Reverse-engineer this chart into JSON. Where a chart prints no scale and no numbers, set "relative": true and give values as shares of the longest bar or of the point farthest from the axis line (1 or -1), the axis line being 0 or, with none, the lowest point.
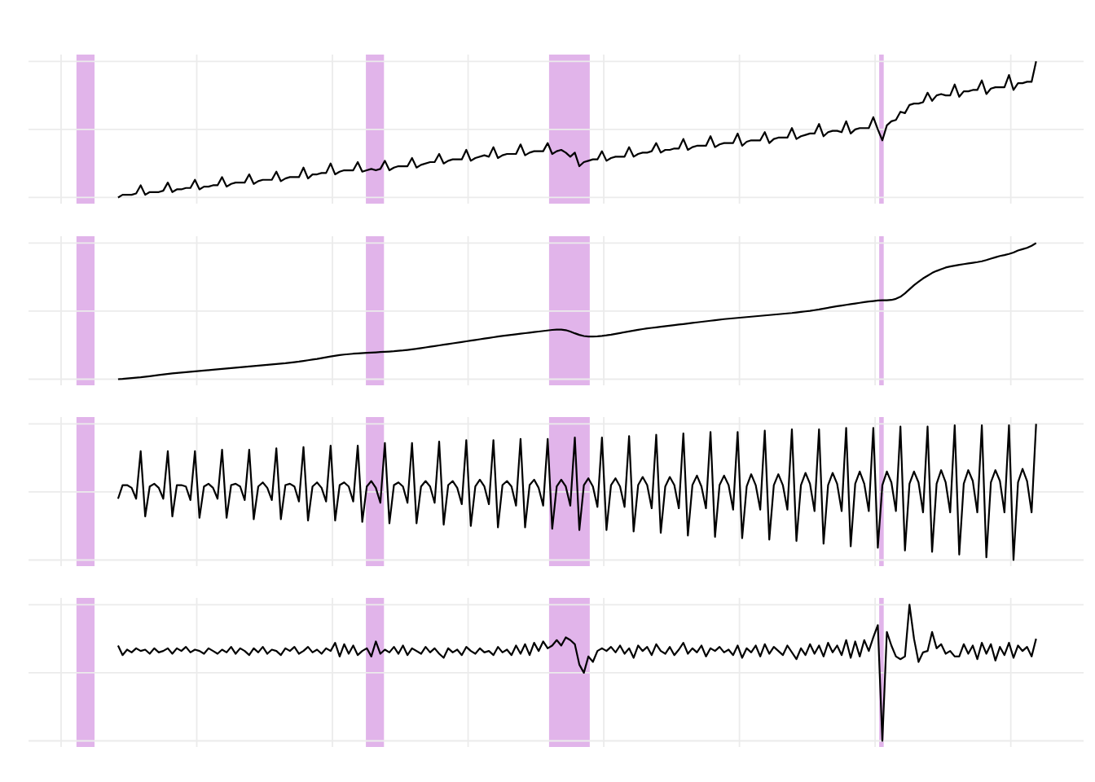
{
  "chart_data": [
    {
      "type": "line",
      "relative": true,
      "grid": true,
      "color": "#000000",
      "categories": [
        null,
        null,
        null,
        null,
        null,
        null,
        null,
        null,
        null,
        null,
        null,
        null,
        null,
        null,
        null,
        null,
        null,
        null,
        null,
        null,
        null,
        null,
        null,
        null,
        null,
        null,
        null,
        null,
        null,
        null,
        null,
        null,
        null,
        null,
        null,
        null,
        null,
        null,
        null,
        null,
        null,
        null,
        null,
        null,
        null,
        null,
        null,
        null,
        null,
        null,
        null,
        null,
        null,
        null,
        null,
        null,
        null,
        null,
        null,
        null,
        null,
        null,
        null,
        null,
        null,
        null,
        null,
        null,
        null,
        null,
        null,
        null,
        null,
        null,
        null,
        null,
        null,
        null,
        null,
        null,
        null,
        null,
        null,
        null,
        null,
        null,
        null,
        null,
        null,
        null,
        null,
        null,
        null,
        null,
        null,
        null,
        null,
        null,
        null,
        null,
        null,
        null,
        null,
        null,
        null,
        null,
        null,
        null,
        null,
        null,
        null,
        null,
        null,
        null,
        null,
        null,
        null,
        null,
        null,
        null,
        null,
        null,
        null,
        null,
        null,
        null,
        null,
        null,
        null,
        null,
        null,
        null,
        null,
        null,
        null,
        null,
        null,
        null,
        null,
        null,
        null,
        null,
        null,
        null,
        null,
        null,
        null,
        null,
        null,
        null,
        null,
        null,
        null,
        null,
        null,
        null,
        null,
        null,
        null,
        null,
        null,
        null,
        null,
        null,
        null,
        null,
        null,
        null,
        null,
        null,
        null,
        null,
        null,
        null,
        null,
        null,
        null,
        null,
        null,
        null,
        null,
        null,
        null,
        null,
        null,
        null,
        null,
        null,
        null,
        null,
        null,
        null,
        null,
        null,
        null,
        null,
        null,
        null,
        null,
        null,
        null,
        null,
        null,
        null
      ],
      "values": [
        0.0,
        0.02,
        0.02,
        0.02,
        0.03,
        0.09,
        0.02,
        0.04,
        0.04,
        0.04,
        0.05,
        0.11,
        0.04,
        0.06,
        0.06,
        0.07,
        0.07,
        0.13,
        0.06,
        0.08,
        0.08,
        0.09,
        0.09,
        0.15,
        0.08,
        0.1,
        0.11,
        0.11,
        0.11,
        0.17,
        0.1,
        0.12,
        0.13,
        0.13,
        0.13,
        0.19,
        0.12,
        0.14,
        0.15,
        0.15,
        0.15,
        0.22,
        0.14,
        0.17,
        0.17,
        0.18,
        0.18,
        0.25,
        0.17,
        0.19,
        0.2,
        0.2,
        0.2,
        0.26,
        0.19,
        0.2,
        0.21,
        0.2,
        0.21,
        0.27,
        0.2,
        0.22,
        0.23,
        0.23,
        0.23,
        0.29,
        0.22,
        0.24,
        0.25,
        0.26,
        0.26,
        0.32,
        0.25,
        0.27,
        0.28,
        0.28,
        0.28,
        0.35,
        0.27,
        0.29,
        0.3,
        0.31,
        0.3,
        0.37,
        0.29,
        0.31,
        0.32,
        0.32,
        0.32,
        0.39,
        0.31,
        0.33,
        0.34,
        0.34,
        0.34,
        0.4,
        0.32,
        0.34,
        0.35,
        0.33,
        0.3,
        0.33,
        0.23,
        0.26,
        0.27,
        0.28,
        0.28,
        0.34,
        0.27,
        0.29,
        0.3,
        0.3,
        0.3,
        0.37,
        0.3,
        0.32,
        0.33,
        0.33,
        0.34,
        0.4,
        0.33,
        0.35,
        0.35,
        0.36,
        0.36,
        0.43,
        0.35,
        0.37,
        0.38,
        0.38,
        0.38,
        0.45,
        0.37,
        0.39,
        0.4,
        0.4,
        0.4,
        0.47,
        0.38,
        0.41,
        0.42,
        0.42,
        0.42,
        0.48,
        0.4,
        0.43,
        0.44,
        0.44,
        0.44,
        0.51,
        0.43,
        0.45,
        0.46,
        0.47,
        0.47,
        0.54,
        0.45,
        0.48,
        0.49,
        0.49,
        0.48,
        0.56,
        0.47,
        0.5,
        0.51,
        0.51,
        0.51,
        0.59,
        0.5,
        0.42,
        0.53,
        0.56,
        0.57,
        0.63,
        0.62,
        0.68,
        0.69,
        0.69,
        0.7,
        0.77,
        0.71,
        0.75,
        0.76,
        0.75,
        0.75,
        0.83,
        0.74,
        0.78,
        0.78,
        0.79,
        0.79,
        0.86,
        0.76,
        0.8,
        0.81,
        0.81,
        0.81,
        0.9,
        0.79,
        0.84,
        0.84,
        0.85,
        0.85,
        1.0
      ]
    },
    {
      "type": "line",
      "relative": true,
      "grid": true,
      "color": "#000000",
      "categories": [
        null,
        null,
        null,
        null,
        null,
        null,
        null,
        null,
        null,
        null,
        null,
        null,
        null,
        null,
        null,
        null,
        null,
        null,
        null,
        null,
        null,
        null,
        null,
        null,
        null,
        null,
        null,
        null,
        null,
        null,
        null,
        null,
        null,
        null,
        null,
        null,
        null,
        null,
        null,
        null,
        null,
        null,
        null,
        null,
        null,
        null,
        null,
        null,
        null,
        null,
        null,
        null,
        null,
        null,
        null,
        null,
        null,
        null,
        null,
        null,
        null,
        null,
        null,
        null,
        null,
        null,
        null,
        null,
        null,
        null,
        null,
        null,
        null,
        null,
        null,
        null,
        null,
        null,
        null,
        null,
        null,
        null,
        null,
        null,
        null,
        null,
        null,
        null,
        null,
        null,
        null,
        null,
        null,
        null,
        null,
        null,
        null,
        null,
        null,
        null,
        null,
        null,
        null,
        null,
        null,
        null,
        null,
        null,
        null,
        null,
        null,
        null,
        null,
        null,
        null,
        null,
        null,
        null,
        null,
        null,
        null,
        null,
        null,
        null,
        null,
        null,
        null,
        null,
        null,
        null,
        null,
        null,
        null,
        null,
        null,
        null,
        null,
        null,
        null,
        null,
        null,
        null,
        null,
        null,
        null,
        null,
        null,
        null,
        null,
        null,
        null,
        null,
        null,
        null,
        null,
        null,
        null,
        null,
        null,
        null,
        null,
        null,
        null,
        null,
        null,
        null,
        null,
        null,
        null,
        null,
        null,
        null,
        null,
        null,
        null,
        null,
        null,
        null,
        null,
        null,
        null,
        null,
        null,
        null,
        null,
        null,
        null,
        null,
        null,
        null,
        null,
        null,
        null,
        null,
        null,
        null,
        null,
        null,
        null,
        null,
        null,
        null,
        null,
        null
      ],
      "values": [
        0.0,
        0.002,
        0.005,
        0.008,
        0.011,
        0.014,
        0.018,
        0.022,
        0.026,
        0.03,
        0.034,
        0.038,
        0.042,
        0.045,
        0.048,
        0.051,
        0.054,
        0.057,
        0.06,
        0.063,
        0.066,
        0.069,
        0.072,
        0.075,
        0.078,
        0.081,
        0.084,
        0.087,
        0.09,
        0.093,
        0.096,
        0.099,
        0.102,
        0.105,
        0.108,
        0.111,
        0.114,
        0.117,
        0.121,
        0.125,
        0.129,
        0.134,
        0.139,
        0.144,
        0.149,
        0.155,
        0.161,
        0.167,
        0.172,
        0.177,
        0.181,
        0.184,
        0.187,
        0.189,
        0.191,
        0.193,
        0.195,
        0.197,
        0.199,
        0.201,
        0.203,
        0.205,
        0.208,
        0.211,
        0.215,
        0.219,
        0.223,
        0.228,
        0.233,
        0.238,
        0.243,
        0.248,
        0.253,
        0.258,
        0.263,
        0.268,
        0.273,
        0.278,
        0.283,
        0.288,
        0.293,
        0.298,
        0.303,
        0.308,
        0.313,
        0.318,
        0.322,
        0.326,
        0.33,
        0.334,
        0.338,
        0.342,
        0.346,
        0.35,
        0.354,
        0.358,
        0.362,
        0.364,
        0.364,
        0.36,
        0.35,
        0.337,
        0.325,
        0.317,
        0.313,
        0.313,
        0.315,
        0.318,
        0.322,
        0.327,
        0.333,
        0.339,
        0.345,
        0.351,
        0.357,
        0.363,
        0.368,
        0.373,
        0.377,
        0.381,
        0.385,
        0.389,
        0.393,
        0.397,
        0.401,
        0.405,
        0.409,
        0.413,
        0.417,
        0.421,
        0.425,
        0.429,
        0.433,
        0.437,
        0.441,
        0.444,
        0.447,
        0.45,
        0.453,
        0.456,
        0.459,
        0.462,
        0.465,
        0.468,
        0.471,
        0.474,
        0.477,
        0.48,
        0.483,
        0.486,
        0.49,
        0.494,
        0.498,
        0.502,
        0.507,
        0.512,
        0.518,
        0.524,
        0.53,
        0.536,
        0.541,
        0.546,
        0.551,
        0.556,
        0.561,
        0.566,
        0.57,
        0.574,
        0.578,
        0.58,
        0.58,
        0.582,
        0.59,
        0.605,
        0.63,
        0.66,
        0.69,
        0.715,
        0.74,
        0.76,
        0.78,
        0.795,
        0.808,
        0.82,
        0.828,
        0.834,
        0.84,
        0.845,
        0.85,
        0.855,
        0.86,
        0.866,
        0.875,
        0.885,
        0.895,
        0.905,
        0.912,
        0.92,
        0.93,
        0.945,
        0.955,
        0.965,
        0.98,
        1.0
      ]
    },
    {
      "type": "line",
      "relative": true,
      "grid": true,
      "color": "#000000",
      "categories": [
        null,
        null,
        null,
        null,
        null,
        null,
        null,
        null,
        null,
        null,
        null,
        null,
        null,
        null,
        null,
        null,
        null,
        null,
        null,
        null,
        null,
        null,
        null,
        null,
        null,
        null,
        null,
        null,
        null,
        null,
        null,
        null,
        null,
        null,
        null,
        null,
        null,
        null,
        null,
        null,
        null,
        null,
        null,
        null,
        null,
        null,
        null,
        null,
        null,
        null,
        null,
        null,
        null,
        null,
        null,
        null,
        null,
        null,
        null,
        null,
        null,
        null,
        null,
        null,
        null,
        null,
        null,
        null,
        null,
        null,
        null,
        null,
        null,
        null,
        null,
        null,
        null,
        null,
        null,
        null,
        null,
        null,
        null,
        null,
        null,
        null,
        null,
        null,
        null,
        null,
        null,
        null,
        null,
        null,
        null,
        null,
        null,
        null,
        null,
        null,
        null,
        null,
        null,
        null,
        null,
        null,
        null,
        null,
        null,
        null,
        null,
        null,
        null,
        null,
        null,
        null,
        null,
        null,
        null,
        null,
        null,
        null,
        null,
        null,
        null,
        null,
        null,
        null,
        null,
        null,
        null,
        null,
        null,
        null,
        null,
        null,
        null,
        null,
        null,
        null,
        null,
        null,
        null,
        null,
        null,
        null,
        null,
        null,
        null,
        null,
        null,
        null,
        null,
        null,
        null,
        null,
        null,
        null,
        null,
        null,
        null,
        null,
        null,
        null,
        null,
        null,
        null,
        null,
        null,
        null,
        null,
        null,
        null,
        null,
        null,
        null,
        null,
        null,
        null,
        null,
        null,
        null,
        null,
        null,
        null,
        null,
        null,
        null,
        null,
        null,
        null,
        null,
        null,
        null,
        null,
        null,
        null,
        null,
        null,
        null,
        null,
        null,
        null,
        null
      ],
      "values": [
        0.45,
        0.55,
        0.55,
        0.53,
        0.45,
        0.8,
        0.32,
        0.54,
        0.56,
        0.53,
        0.45,
        0.8,
        0.32,
        0.55,
        0.55,
        0.54,
        0.44,
        0.8,
        0.31,
        0.54,
        0.56,
        0.53,
        0.45,
        0.81,
        0.31,
        0.55,
        0.56,
        0.54,
        0.44,
        0.81,
        0.3,
        0.54,
        0.57,
        0.53,
        0.44,
        0.82,
        0.3,
        0.55,
        0.56,
        0.54,
        0.43,
        0.83,
        0.29,
        0.54,
        0.57,
        0.53,
        0.43,
        0.84,
        0.29,
        0.55,
        0.57,
        0.54,
        0.43,
        0.84,
        0.28,
        0.54,
        0.58,
        0.53,
        0.42,
        0.86,
        0.27,
        0.55,
        0.57,
        0.54,
        0.42,
        0.86,
        0.27,
        0.54,
        0.58,
        0.54,
        0.42,
        0.87,
        0.26,
        0.55,
        0.58,
        0.53,
        0.41,
        0.88,
        0.25,
        0.54,
        0.59,
        0.54,
        0.41,
        0.88,
        0.24,
        0.55,
        0.58,
        0.54,
        0.4,
        0.89,
        0.24,
        0.55,
        0.59,
        0.53,
        0.4,
        0.89,
        0.23,
        0.54,
        0.59,
        0.54,
        0.4,
        0.9,
        0.22,
        0.55,
        0.6,
        0.54,
        0.39,
        0.9,
        0.22,
        0.55,
        0.6,
        0.54,
        0.39,
        0.91,
        0.21,
        0.55,
        0.61,
        0.55,
        0.38,
        0.92,
        0.2,
        0.54,
        0.61,
        0.55,
        0.38,
        0.93,
        0.18,
        0.55,
        0.62,
        0.54,
        0.38,
        0.94,
        0.17,
        0.55,
        0.62,
        0.55,
        0.37,
        0.94,
        0.16,
        0.54,
        0.63,
        0.55,
        0.37,
        0.95,
        0.15,
        0.55,
        0.63,
        0.55,
        0.37,
        0.96,
        0.14,
        0.55,
        0.64,
        0.56,
        0.36,
        0.96,
        0.12,
        0.55,
        0.64,
        0.56,
        0.36,
        0.97,
        0.1,
        0.56,
        0.65,
        0.56,
        0.36,
        0.97,
        0.09,
        0.55,
        0.65,
        0.57,
        0.36,
        0.98,
        0.07,
        0.56,
        0.65,
        0.57,
        0.35,
        0.98,
        0.06,
        0.56,
        0.66,
        0.57,
        0.35,
        0.99,
        0.04,
        0.56,
        0.66,
        0.58,
        0.35,
        0.99,
        0.02,
        0.57,
        0.66,
        0.58,
        0.35,
        0.99,
        0.0,
        0.57,
        0.67,
        0.58,
        0.35,
        1.0
      ]
    },
    {
      "type": "line",
      "relative": true,
      "grid": true,
      "color": "#000000",
      "categories": [
        null,
        null,
        null,
        null,
        null,
        null,
        null,
        null,
        null,
        null,
        null,
        null,
        null,
        null,
        null,
        null,
        null,
        null,
        null,
        null,
        null,
        null,
        null,
        null,
        null,
        null,
        null,
        null,
        null,
        null,
        null,
        null,
        null,
        null,
        null,
        null,
        null,
        null,
        null,
        null,
        null,
        null,
        null,
        null,
        null,
        null,
        null,
        null,
        null,
        null,
        null,
        null,
        null,
        null,
        null,
        null,
        null,
        null,
        null,
        null,
        null,
        null,
        null,
        null,
        null,
        null,
        null,
        null,
        null,
        null,
        null,
        null,
        null,
        null,
        null,
        null,
        null,
        null,
        null,
        null,
        null,
        null,
        null,
        null,
        null,
        null,
        null,
        null,
        null,
        null,
        null,
        null,
        null,
        null,
        null,
        null,
        null,
        null,
        null,
        null,
        null,
        null,
        null,
        null,
        null,
        null,
        null,
        null,
        null,
        null,
        null,
        null,
        null,
        null,
        null,
        null,
        null,
        null,
        null,
        null,
        null,
        null,
        null,
        null,
        null,
        null,
        null,
        null,
        null,
        null,
        null,
        null,
        null,
        null,
        null,
        null,
        null,
        null,
        null,
        null,
        null,
        null,
        null,
        null,
        null,
        null,
        null,
        null,
        null,
        null,
        null,
        null,
        null,
        null,
        null,
        null,
        null,
        null,
        null,
        null,
        null,
        null,
        null,
        null,
        null,
        null,
        null,
        null,
        null,
        null,
        null,
        null,
        null,
        null,
        null,
        null,
        null,
        null,
        null,
        null,
        null,
        null,
        null,
        null,
        null,
        null,
        null,
        null,
        null,
        null,
        null,
        null,
        null,
        null,
        null,
        null,
        null,
        null,
        null,
        null,
        null,
        null,
        null,
        null
      ],
      "values": [
        0.7,
        0.63,
        0.67,
        0.65,
        0.68,
        0.66,
        0.67,
        0.64,
        0.68,
        0.65,
        0.66,
        0.68,
        0.64,
        0.68,
        0.66,
        0.69,
        0.65,
        0.67,
        0.66,
        0.64,
        0.68,
        0.66,
        0.64,
        0.67,
        0.65,
        0.69,
        0.64,
        0.68,
        0.66,
        0.63,
        0.68,
        0.65,
        0.69,
        0.64,
        0.67,
        0.66,
        0.63,
        0.68,
        0.66,
        0.69,
        0.64,
        0.66,
        0.69,
        0.65,
        0.67,
        0.64,
        0.68,
        0.66,
        0.72,
        0.62,
        0.71,
        0.64,
        0.7,
        0.63,
        0.66,
        0.68,
        0.62,
        0.73,
        0.64,
        0.67,
        0.65,
        0.69,
        0.64,
        0.7,
        0.63,
        0.68,
        0.66,
        0.64,
        0.69,
        0.65,
        0.68,
        0.64,
        0.61,
        0.68,
        0.65,
        0.67,
        0.63,
        0.69,
        0.66,
        0.64,
        0.68,
        0.65,
        0.66,
        0.63,
        0.69,
        0.65,
        0.67,
        0.63,
        0.7,
        0.64,
        0.71,
        0.63,
        0.72,
        0.66,
        0.73,
        0.68,
        0.7,
        0.74,
        0.7,
        0.76,
        0.74,
        0.71,
        0.56,
        0.5,
        0.62,
        0.58,
        0.66,
        0.68,
        0.66,
        0.69,
        0.65,
        0.7,
        0.64,
        0.68,
        0.61,
        0.7,
        0.66,
        0.69,
        0.63,
        0.71,
        0.66,
        0.64,
        0.69,
        0.63,
        0.67,
        0.72,
        0.64,
        0.68,
        0.65,
        0.7,
        0.62,
        0.68,
        0.66,
        0.69,
        0.65,
        0.67,
        0.63,
        0.7,
        0.61,
        0.68,
        0.65,
        0.7,
        0.62,
        0.71,
        0.64,
        0.69,
        0.66,
        0.63,
        0.7,
        0.65,
        0.6,
        0.68,
        0.63,
        0.71,
        0.64,
        0.7,
        0.62,
        0.72,
        0.65,
        0.7,
        0.63,
        0.74,
        0.61,
        0.73,
        0.62,
        0.74,
        0.66,
        0.76,
        0.85,
        0.0,
        0.8,
        0.7,
        0.62,
        0.6,
        0.62,
        1.0,
        0.75,
        0.58,
        0.65,
        0.66,
        0.8,
        0.68,
        0.71,
        0.64,
        0.66,
        0.62,
        0.62,
        0.71,
        0.64,
        0.7,
        0.6,
        0.72,
        0.64,
        0.71,
        0.59,
        0.69,
        0.63,
        0.72,
        0.61,
        0.7,
        0.66,
        0.69,
        0.62,
        0.75
      ]
    }
  ]
}
